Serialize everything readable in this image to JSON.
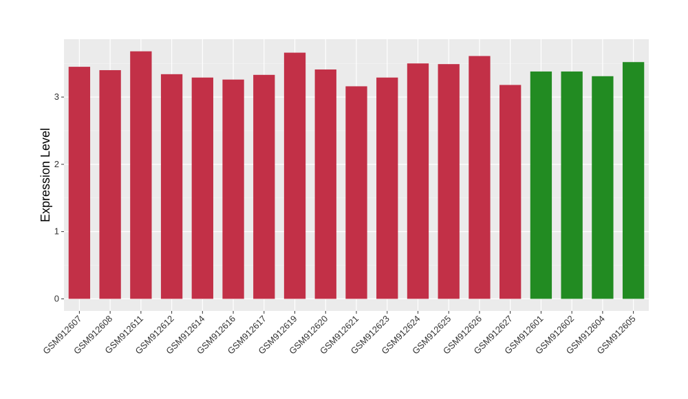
{
  "chart_data": {
    "type": "bar",
    "title": "",
    "xlabel": "",
    "ylabel": "Expression Level",
    "ylim": [
      -0.18,
      3.86
    ],
    "yticks": [
      0,
      1,
      2,
      3
    ],
    "grid": true,
    "categories": [
      "GSM912607",
      "GSM912608",
      "GSM912611",
      "GSM912612",
      "GSM912614",
      "GSM912616",
      "GSM912617",
      "GSM912619",
      "GSM912620",
      "GSM912621",
      "GSM912623",
      "GSM912624",
      "GSM912625",
      "GSM912626",
      "GSM912627",
      "GSM912601",
      "GSM912602",
      "GSM912604",
      "GSM912605"
    ],
    "values": [
      3.45,
      3.4,
      3.68,
      3.34,
      3.29,
      3.26,
      3.33,
      3.66,
      3.41,
      3.16,
      3.29,
      3.5,
      3.49,
      3.61,
      3.18,
      3.38,
      3.38,
      3.31,
      3.52
    ],
    "groups": [
      "a",
      "a",
      "a",
      "a",
      "a",
      "a",
      "a",
      "a",
      "a",
      "a",
      "a",
      "a",
      "a",
      "a",
      "a",
      "b",
      "b",
      "b",
      "b"
    ],
    "colors": {
      "a": "#C23047",
      "b": "#228B22"
    }
  }
}
